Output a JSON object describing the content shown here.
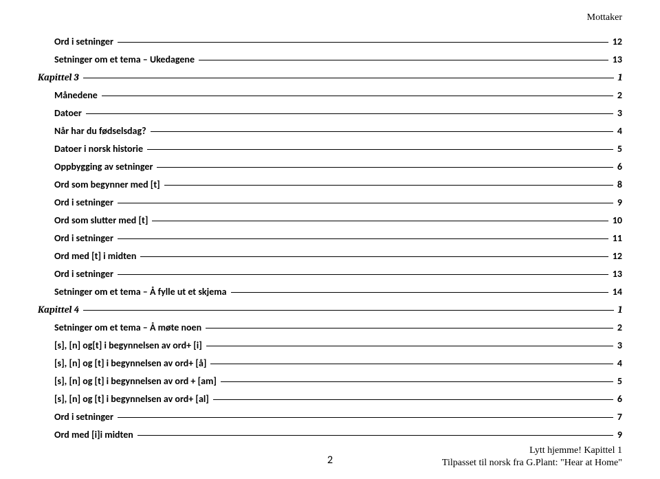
{
  "header": {
    "right": "Mottaker"
  },
  "toc": [
    {
      "level": 2,
      "label": "Ord i setninger",
      "page": "12"
    },
    {
      "level": 2,
      "label": "Setninger om et tema – Ukedagene",
      "page": "13"
    },
    {
      "level": 1,
      "label": "Kapittel 3",
      "page": "1"
    },
    {
      "level": 2,
      "label": "Månedene",
      "page": "2"
    },
    {
      "level": 2,
      "label": "Datoer",
      "page": "3"
    },
    {
      "level": 2,
      "label": "Når har du fødselsdag?",
      "page": "4"
    },
    {
      "level": 2,
      "label": "Datoer i norsk historie",
      "page": "5"
    },
    {
      "level": 2,
      "label": "Oppbygging av setninger",
      "page": "6"
    },
    {
      "level": 2,
      "label": "Ord som begynner med [t]",
      "page": "8"
    },
    {
      "level": 2,
      "label": "Ord i setninger",
      "page": "9"
    },
    {
      "level": 2,
      "label": "Ord som slutter med [t]",
      "page": "10"
    },
    {
      "level": 2,
      "label": "Ord i setninger",
      "page": "11"
    },
    {
      "level": 2,
      "label": "Ord med [t] i midten",
      "page": "12"
    },
    {
      "level": 2,
      "label": "Ord i setninger",
      "page": "13"
    },
    {
      "level": 2,
      "label": "Setninger om et tema – Å fylle ut et skjema",
      "page": "14"
    },
    {
      "level": 1,
      "label": "Kapittel 4",
      "page": "1"
    },
    {
      "level": 2,
      "label": "Setninger om et tema – Å møte noen",
      "page": "2"
    },
    {
      "level": 2,
      "label": "[s], [n] og[t] i begynnelsen av ord+ [i]",
      "page": "3"
    },
    {
      "level": 2,
      "label": "[s], [n] og [t] i begynnelsen av ord+ [å]",
      "page": "4"
    },
    {
      "level": 2,
      "label": "[s], [n] og [t] i begynnelsen av ord + [am]",
      "page": "5"
    },
    {
      "level": 2,
      "label": "[s], [n] og [t] i begynnelsen av ord+ [al]",
      "page": "6"
    },
    {
      "level": 2,
      "label": "Ord i setninger",
      "page": "7"
    },
    {
      "level": 2,
      "label": "Ord med [i]i midten",
      "page": "9"
    }
  ],
  "footer": {
    "pagenum": "2",
    "line1": "Lytt hjemme! Kapittel 1",
    "line2": "Tilpasset til norsk fra G.Plant: \"Hear at Home\""
  }
}
